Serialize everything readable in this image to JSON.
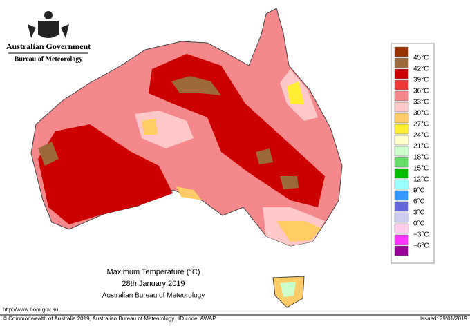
{
  "header": {
    "government": "Australian Government",
    "agency": "Bureau of Meteorology"
  },
  "legend": [
    {
      "label": "45°C",
      "color": "#993300"
    },
    {
      "label": "42°C",
      "color": "#9c6a3a"
    },
    {
      "label": "39°C",
      "color": "#cc0000"
    },
    {
      "label": "36°C",
      "color": "#ee3838"
    },
    {
      "label": "33°C",
      "color": "#f4888a"
    },
    {
      "label": "30°C",
      "color": "#fcc8c8"
    },
    {
      "label": "27°C",
      "color": "#ffcc66"
    },
    {
      "label": "24°C",
      "color": "#ffee33"
    },
    {
      "label": "21°C",
      "color": "#ffffcc"
    },
    {
      "label": "18°C",
      "color": "#ccffcc"
    },
    {
      "label": "15°C",
      "color": "#66dd66"
    },
    {
      "label": "12°C",
      "color": "#00bb00"
    },
    {
      "label": "9°C",
      "color": "#99ffff"
    },
    {
      "label": "6°C",
      "color": "#3399ff"
    },
    {
      "label": "3°C",
      "color": "#6666dd"
    },
    {
      "label": "0°C",
      "color": "#ccccee"
    },
    {
      "label": "−3°C",
      "color": "#ffccee"
    },
    {
      "label": "−6°C",
      "color": "#ff33ff"
    },
    {
      "label": "",
      "color": "#990099"
    }
  ],
  "caption": {
    "title": "Maximum Temperature (°C)",
    "date": "28th January 2019",
    "source": "Australian Bureau of Meteorology"
  },
  "footer": {
    "url": "http://www.bom.gov.au",
    "copyright": "© Commonwealth of Australia 2019, Australian Bureau of Meteorology",
    "id": "ID code: AWAP",
    "issued": "Issued: 29/01/2019"
  }
}
